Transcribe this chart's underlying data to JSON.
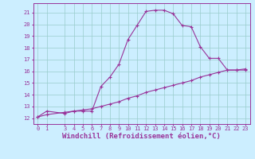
{
  "xlabel": "Windchill (Refroidissement éolien,°C)",
  "bg_color": "#cceeff",
  "line_color": "#993399",
  "grid_color": "#99cccc",
  "xlim": [
    -0.5,
    23.5
  ],
  "ylim": [
    11.5,
    21.8
  ],
  "xticks": [
    0,
    1,
    3,
    4,
    5,
    6,
    7,
    8,
    9,
    10,
    11,
    12,
    13,
    14,
    15,
    16,
    17,
    18,
    19,
    20,
    21,
    22,
    23
  ],
  "yticks": [
    12,
    13,
    14,
    15,
    16,
    17,
    18,
    19,
    20,
    21
  ],
  "curve1_x": [
    0,
    1,
    3,
    4,
    5,
    6,
    7,
    8,
    9,
    10,
    11,
    12,
    13,
    14,
    15,
    16,
    17,
    18,
    19,
    20,
    21,
    22,
    23
  ],
  "curve1_y": [
    12.1,
    12.6,
    12.4,
    12.6,
    12.6,
    12.6,
    14.7,
    15.5,
    16.6,
    18.7,
    19.9,
    21.1,
    21.2,
    21.2,
    20.9,
    19.9,
    19.8,
    18.1,
    17.1,
    17.1,
    16.1,
    16.1,
    16.1
  ],
  "curve2_x": [
    0,
    1,
    3,
    4,
    5,
    6,
    7,
    8,
    9,
    10,
    11,
    12,
    13,
    14,
    15,
    16,
    17,
    18,
    19,
    20,
    21,
    22,
    23
  ],
  "curve2_y": [
    12.1,
    12.3,
    12.5,
    12.6,
    12.7,
    12.8,
    13.0,
    13.2,
    13.4,
    13.7,
    13.9,
    14.2,
    14.4,
    14.6,
    14.8,
    15.0,
    15.2,
    15.5,
    15.7,
    15.9,
    16.1,
    16.1,
    16.2
  ],
  "markersize": 3,
  "linewidth": 0.8,
  "tick_fontsize": 5,
  "xlabel_fontsize": 6.5
}
